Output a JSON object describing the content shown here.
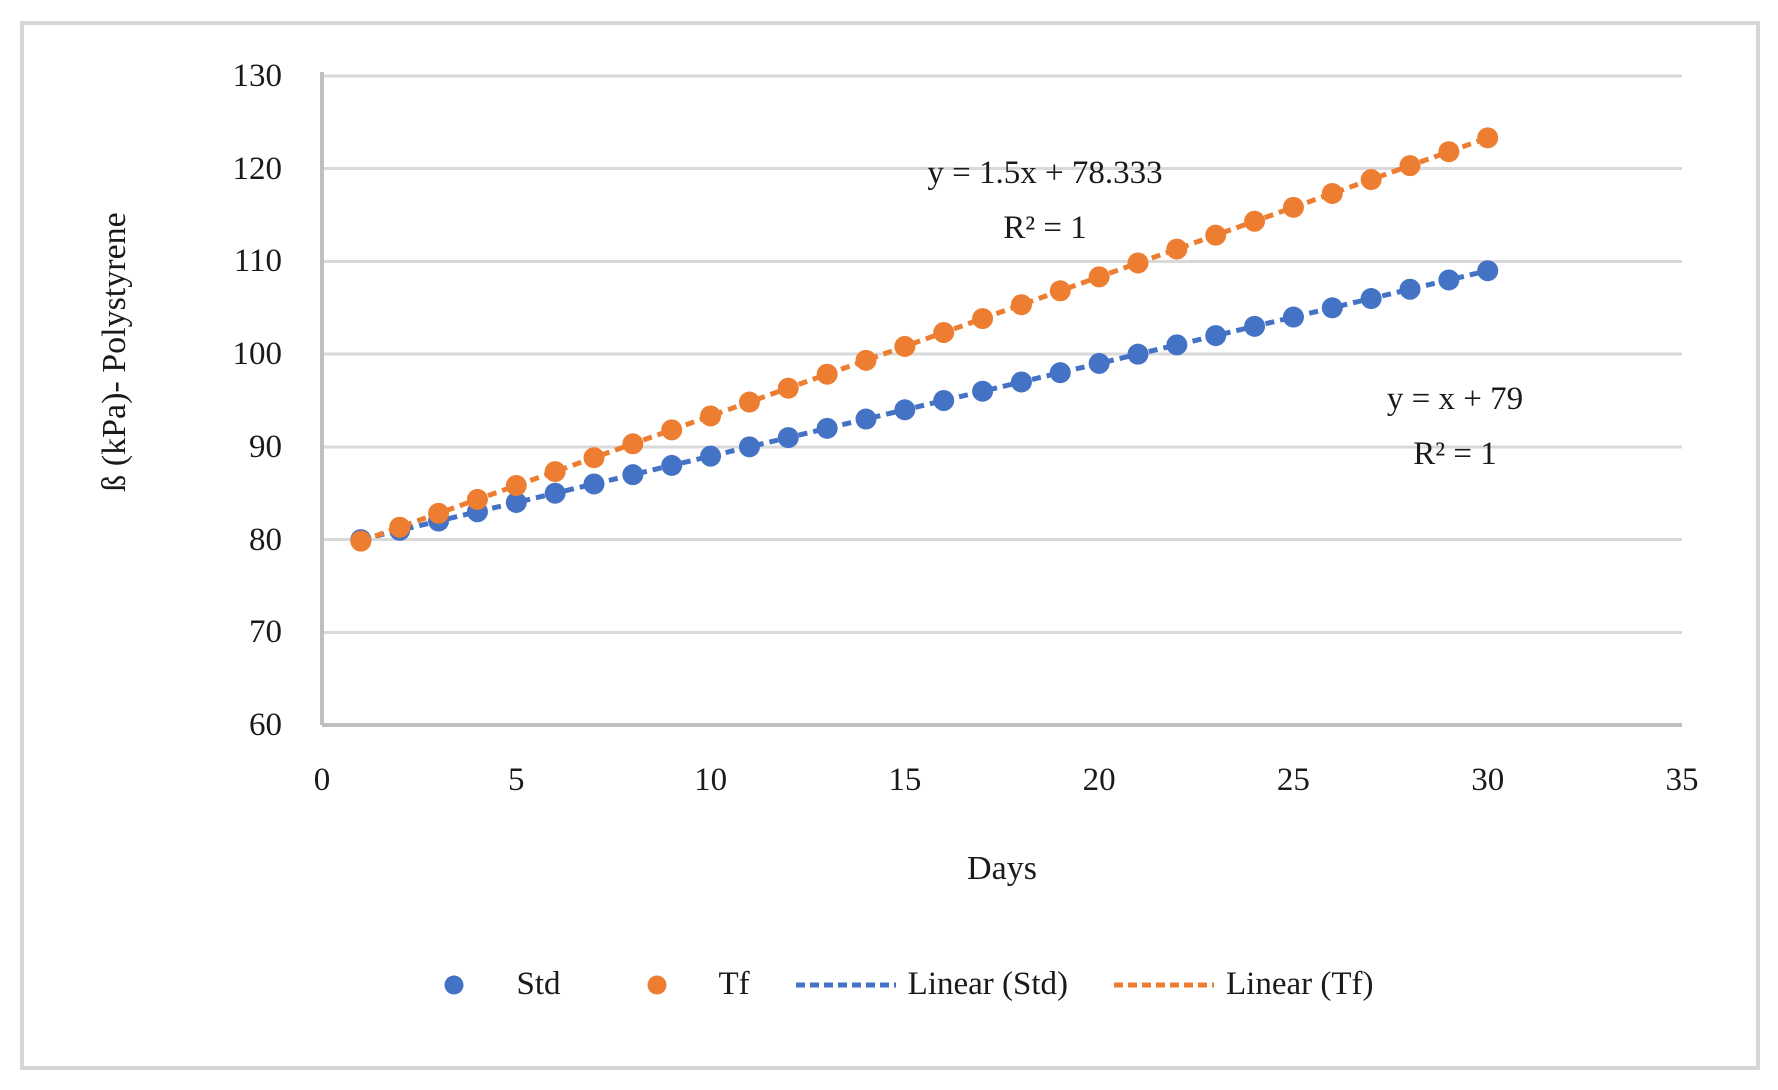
{
  "chart_data": {
    "type": "scatter",
    "xlabel": "Days",
    "ylabel": "ß (kPa)- Polystyrene",
    "xlim": [
      0,
      35
    ],
    "ylim": [
      60,
      130
    ],
    "xticks": [
      0,
      5,
      10,
      15,
      20,
      25,
      30,
      35
    ],
    "yticks": [
      60,
      70,
      80,
      90,
      100,
      110,
      120,
      130
    ],
    "grid": "horizontal",
    "x": [
      1,
      2,
      3,
      4,
      5,
      6,
      7,
      8,
      9,
      10,
      11,
      12,
      13,
      14,
      15,
      16,
      17,
      18,
      19,
      20,
      21,
      22,
      23,
      24,
      25,
      26,
      27,
      28,
      29,
      30
    ],
    "series": [
      {
        "name": "Std",
        "color": "#4472C4",
        "marker": "circle",
        "values": [
          80,
          81,
          82,
          83,
          84,
          85,
          86,
          87,
          88,
          89,
          90,
          91,
          92,
          93,
          94,
          95,
          96,
          97,
          98,
          99,
          100,
          101,
          102,
          103,
          104,
          105,
          106,
          107,
          108,
          109
        ],
        "trendline": {
          "style": "dashed",
          "equation": "y = x + 79",
          "r_squared": "R² = 1"
        }
      },
      {
        "name": "Tf",
        "color": "#ED7D31",
        "marker": "circle",
        "values": [
          79.833,
          81.333,
          82.833,
          84.333,
          85.833,
          87.333,
          88.833,
          90.333,
          91.833,
          93.333,
          94.833,
          96.333,
          97.833,
          99.333,
          100.833,
          102.333,
          103.833,
          105.333,
          106.833,
          108.333,
          109.833,
          111.333,
          112.833,
          114.333,
          115.833,
          117.333,
          118.833,
          120.333,
          121.833,
          123.333
        ],
        "trendline": {
          "style": "dashed",
          "equation": "y = 1.5x + 78.333",
          "r_squared": "R² = 1"
        }
      }
    ],
    "legend": {
      "position": "bottom",
      "entries": [
        {
          "label": "Std",
          "type": "dot",
          "color": "#4472C4"
        },
        {
          "label": "Tf",
          "type": "dot",
          "color": "#ED7D31"
        },
        {
          "label": "Linear (Std)",
          "type": "dashed-line",
          "color": "#4472C4"
        },
        {
          "label": "Linear (Tf)",
          "type": "dashed-line",
          "color": "#ED7D31"
        }
      ]
    }
  },
  "annotations": {
    "tf": {
      "line1": "y = 1.5x + 78.333",
      "line2": "R² = 1"
    },
    "std": {
      "line1": "y = x + 79",
      "line2": "R² = 1"
    }
  },
  "axis_titles": {
    "x": "Days",
    "y": "ß (kPa)- Polystyrene"
  },
  "colors": {
    "grid": "#d9d9d9",
    "axis_line": "#bfbfbf",
    "text": "#1a1a1a",
    "frame_border": "#d6d6d6",
    "std": "#4472C4",
    "tf": "#ED7D31"
  }
}
